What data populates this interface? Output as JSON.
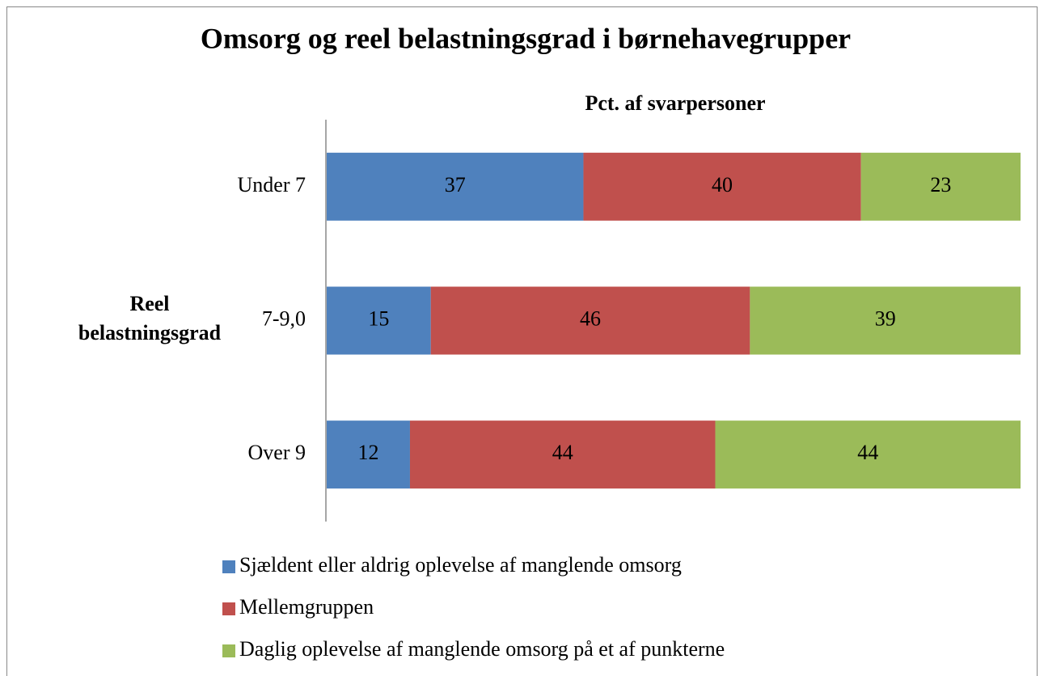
{
  "chart_data": {
    "type": "stacked_bar_horizontal",
    "title": "Omsorg og reel belastningsgrad i børnehavegrupper",
    "subtitle": "Pct. af svarpersoner",
    "y_label": "Reel belastningsgrad",
    "categories": [
      "Under 7",
      "7-9,0",
      "Over 9"
    ],
    "xlim": [
      0,
      100
    ],
    "series": [
      {
        "name": "Sjældent eller aldrig oplevelse af manglende omsorg",
        "color": "#4f81bd",
        "values": [
          37,
          15,
          12
        ]
      },
      {
        "name": "Mellemgruppen",
        "color": "#c0504d",
        "values": [
          40,
          46,
          44
        ]
      },
      {
        "name": "Daglig oplevelse af manglende omsorg på et af punkterne",
        "color": "#9bbb59",
        "values": [
          23,
          39,
          44
        ]
      }
    ]
  }
}
